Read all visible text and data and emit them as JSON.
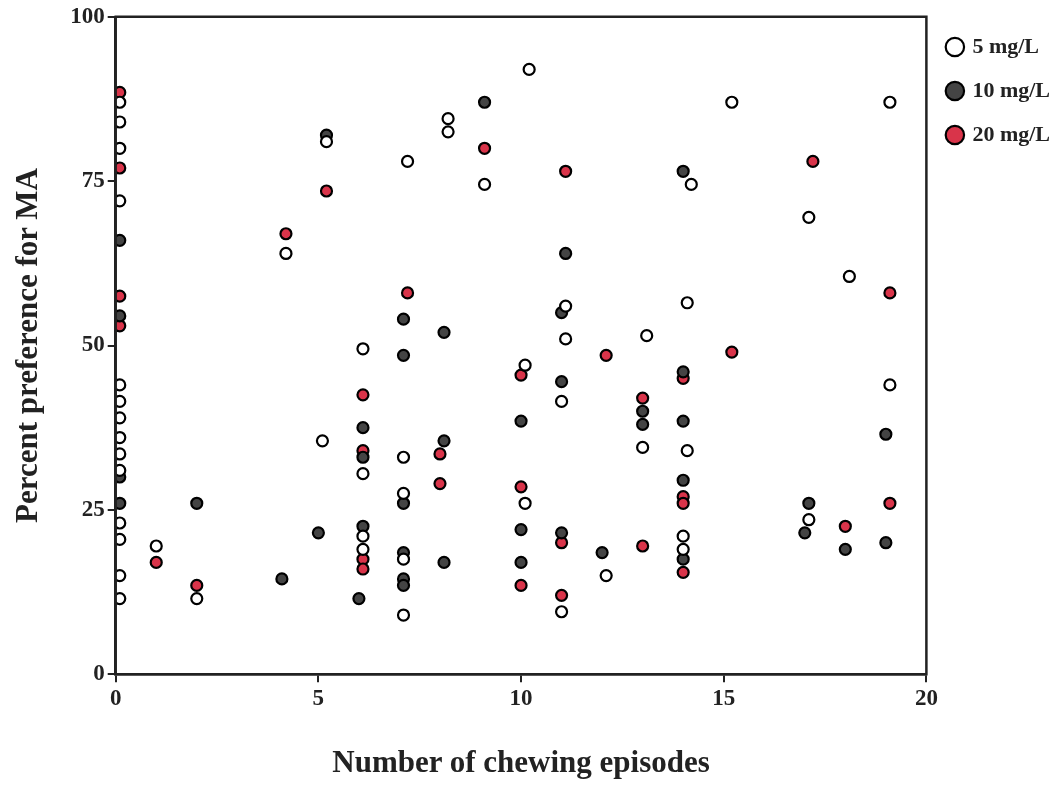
{
  "chart_data": {
    "type": "scatter",
    "xlabel": "Number of chewing episodes",
    "ylabel": "Percent preference for MA",
    "xlim": [
      0,
      20
    ],
    "xticks": [
      0,
      5,
      10,
      15,
      20
    ],
    "ylim": [
      0,
      100
    ],
    "yticks": [
      0,
      25,
      50,
      75,
      100
    ],
    "grid": false,
    "legend": "right",
    "marker": "circle",
    "series": [
      {
        "name": "5 mg/L",
        "color": "#ffffff",
        "x": [
          0.1,
          0.1,
          0.1,
          0.1,
          0.1,
          0.1,
          0.1,
          0.1,
          0.1,
          0.1,
          0.1,
          0.1,
          0.1,
          0.1,
          1,
          2,
          4.2,
          5.2,
          5.1,
          6.1,
          6.1,
          6.1,
          6.1,
          7.1,
          7.1,
          7.1,
          7.1,
          7.2,
          8.2,
          8.2,
          9.1,
          10.2,
          10.1,
          10.1,
          11.1,
          11.1,
          11,
          11,
          12.1,
          13.1,
          13,
          14.2,
          14.1,
          14.1,
          14,
          14,
          15.2,
          17.1,
          17.1,
          18.1,
          19.1,
          19.1
        ],
        "values": [
          87,
          84,
          80,
          72,
          44,
          41.5,
          39,
          36,
          33.5,
          31,
          23,
          20.5,
          15,
          11.5,
          19.5,
          11.5,
          64,
          81,
          35.5,
          49.5,
          30.5,
          21,
          19,
          33,
          27.5,
          17.5,
          9,
          78,
          84.5,
          82.5,
          74.5,
          92,
          47,
          26,
          56,
          51,
          41.5,
          9.5,
          15,
          51.5,
          34.5,
          74.5,
          56.5,
          34,
          21,
          19,
          87,
          69.5,
          23.5,
          60.5,
          87,
          44
        ]
      },
      {
        "name": "10 mg/L",
        "color": "#444444",
        "x": [
          0.1,
          0.1,
          0.1,
          0.1,
          2,
          4.1,
          5,
          5.2,
          6.1,
          6.1,
          6.1,
          6,
          7.1,
          7.1,
          7.1,
          7.1,
          7.1,
          7.1,
          8.1,
          8.1,
          8.1,
          9.1,
          10,
          10,
          10,
          11.1,
          11,
          11,
          11,
          12,
          13,
          13,
          14,
          14,
          14,
          14,
          14,
          17.1,
          17,
          18,
          19,
          19
        ],
        "values": [
          66,
          54.5,
          30,
          26,
          26,
          14.5,
          21.5,
          82,
          37.5,
          33,
          22.5,
          11.5,
          54,
          48.5,
          26,
          18.5,
          14.5,
          13.5,
          52,
          35.5,
          17,
          87,
          38.5,
          22,
          17,
          64,
          55,
          44.5,
          21.5,
          18.5,
          40,
          38,
          76.5,
          46,
          38.5,
          29.5,
          17.5,
          26,
          21.5,
          19,
          36.5,
          20
        ]
      },
      {
        "name": "20 mg/L",
        "color": "#d9344a",
        "x": [
          0.1,
          0.1,
          0.1,
          0.1,
          1,
          2,
          4.2,
          5.2,
          6.1,
          6.1,
          6.1,
          6.1,
          7.2,
          8,
          8,
          9.1,
          10,
          10,
          10,
          11.1,
          11,
          11,
          12.1,
          13,
          13,
          14,
          14,
          14,
          14,
          15.2,
          17.2,
          18,
          19.1,
          19.1
        ],
        "values": [
          88.5,
          77,
          57.5,
          53,
          17,
          13.5,
          67,
          73.5,
          42.5,
          34,
          17.5,
          16,
          58,
          33.5,
          29,
          80,
          45.5,
          28.5,
          13.5,
          76.5,
          20,
          12,
          48.5,
          42,
          19.5,
          45,
          27,
          26,
          15.5,
          49,
          78,
          22.5,
          58,
          26
        ]
      }
    ]
  }
}
